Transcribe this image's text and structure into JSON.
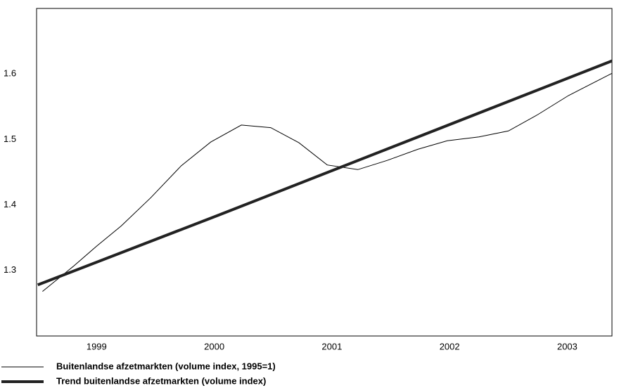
{
  "chart_data": {
    "type": "line",
    "xlim": [
      1998.99,
      2003.88
    ],
    "ylim": [
      1.2,
      1.7
    ],
    "yticks": [
      1.3,
      1.4,
      1.5,
      1.6
    ],
    "xticks": [
      {
        "value": 1999.5,
        "label": "1999"
      },
      {
        "value": 2000.5,
        "label": "2000"
      },
      {
        "value": 2001.5,
        "label": "2001"
      },
      {
        "value": 2002.5,
        "label": "2002"
      },
      {
        "value": 2003.5,
        "label": "2003"
      }
    ],
    "grid": true,
    "legend": "bottom",
    "series": [
      {
        "name": "Buitenlandse afzetmarkten (volume index, 1995=1)",
        "color": "#000000",
        "width": 1,
        "x": [
          1999.04,
          1999.3,
          1999.5,
          1999.71,
          1999.96,
          2000.22,
          2000.47,
          2000.73,
          2000.98,
          2001.22,
          2001.46,
          2001.72,
          2001.97,
          2002.23,
          2002.48,
          2002.75,
          2003.0,
          2003.25,
          2003.51,
          2003.88
        ],
        "values": [
          1.268,
          1.306,
          1.337,
          1.368,
          1.411,
          1.46,
          1.496,
          1.522,
          1.518,
          1.495,
          1.461,
          1.454,
          1.468,
          1.485,
          1.498,
          1.504,
          1.513,
          1.538,
          1.567,
          1.601
        ]
      },
      {
        "name": "Trend buitenlandse afzetmarkten (volume index)",
        "color": "#222222",
        "width": 4,
        "x": [
          1999.0,
          2000.53,
          2003.88
        ],
        "values": [
          1.278,
          1.384,
          1.62
        ]
      }
    ]
  }
}
